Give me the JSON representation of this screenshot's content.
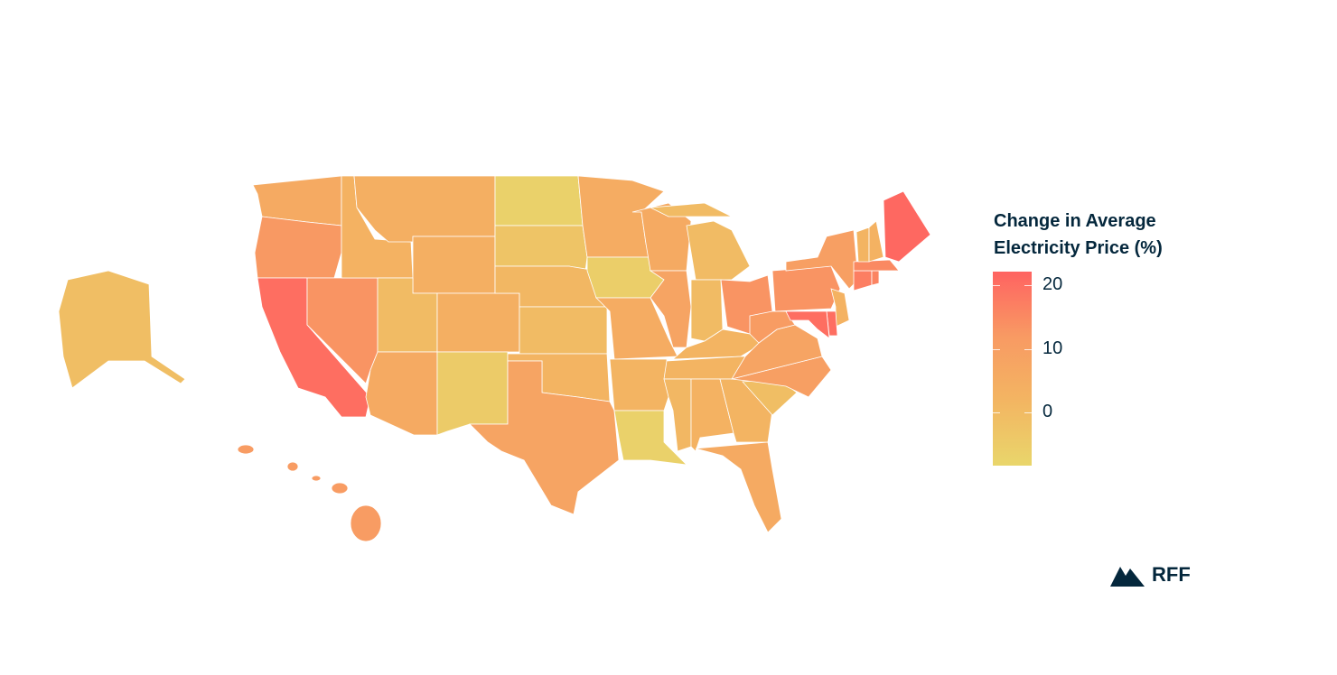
{
  "chart_data": {
    "type": "choropleth",
    "title": "",
    "legend": {
      "title_line1": "Change in Average",
      "title_line2": "Electricity Price (%)",
      "ticks": [
        20,
        10,
        0
      ],
      "range": [
        -8.4,
        22
      ],
      "placement": "right"
    },
    "colorscale": [
      "#E9D66B",
      "#F3B562",
      "#F89A63",
      "#FF6361"
    ],
    "states": {
      "WA": 6,
      "OR": 12,
      "CA": 20,
      "NV": 13,
      "ID": 3,
      "MT": 4,
      "WY": 4,
      "UT": 0,
      "CO": 4,
      "AZ": 6,
      "NM": -5,
      "ND": -7,
      "SD": -3,
      "NE": 1,
      "KS": 0,
      "OK": 2,
      "TX": 8,
      "MN": 5,
      "IA": -6,
      "MO": 5,
      "AR": 2,
      "LA": -7,
      "WI": 6,
      "IL": 8,
      "MI": 0,
      "IN": 0,
      "OH": 13,
      "KY": 2,
      "TN": 2,
      "MS": 1,
      "AL": 3,
      "GA": 2,
      "FL": 6,
      "SC": -1,
      "NC": 10,
      "VA": 8,
      "WV": 11,
      "PA": 13,
      "NY": 10,
      "NJ": 3,
      "DE": 20,
      "MD": 20,
      "CT": 17,
      "RI": 16,
      "MA": 15,
      "VT": 2,
      "NH": 3,
      "ME": 21,
      "AK": -1,
      "HI": 11
    }
  },
  "logo": {
    "text": "RFF"
  }
}
